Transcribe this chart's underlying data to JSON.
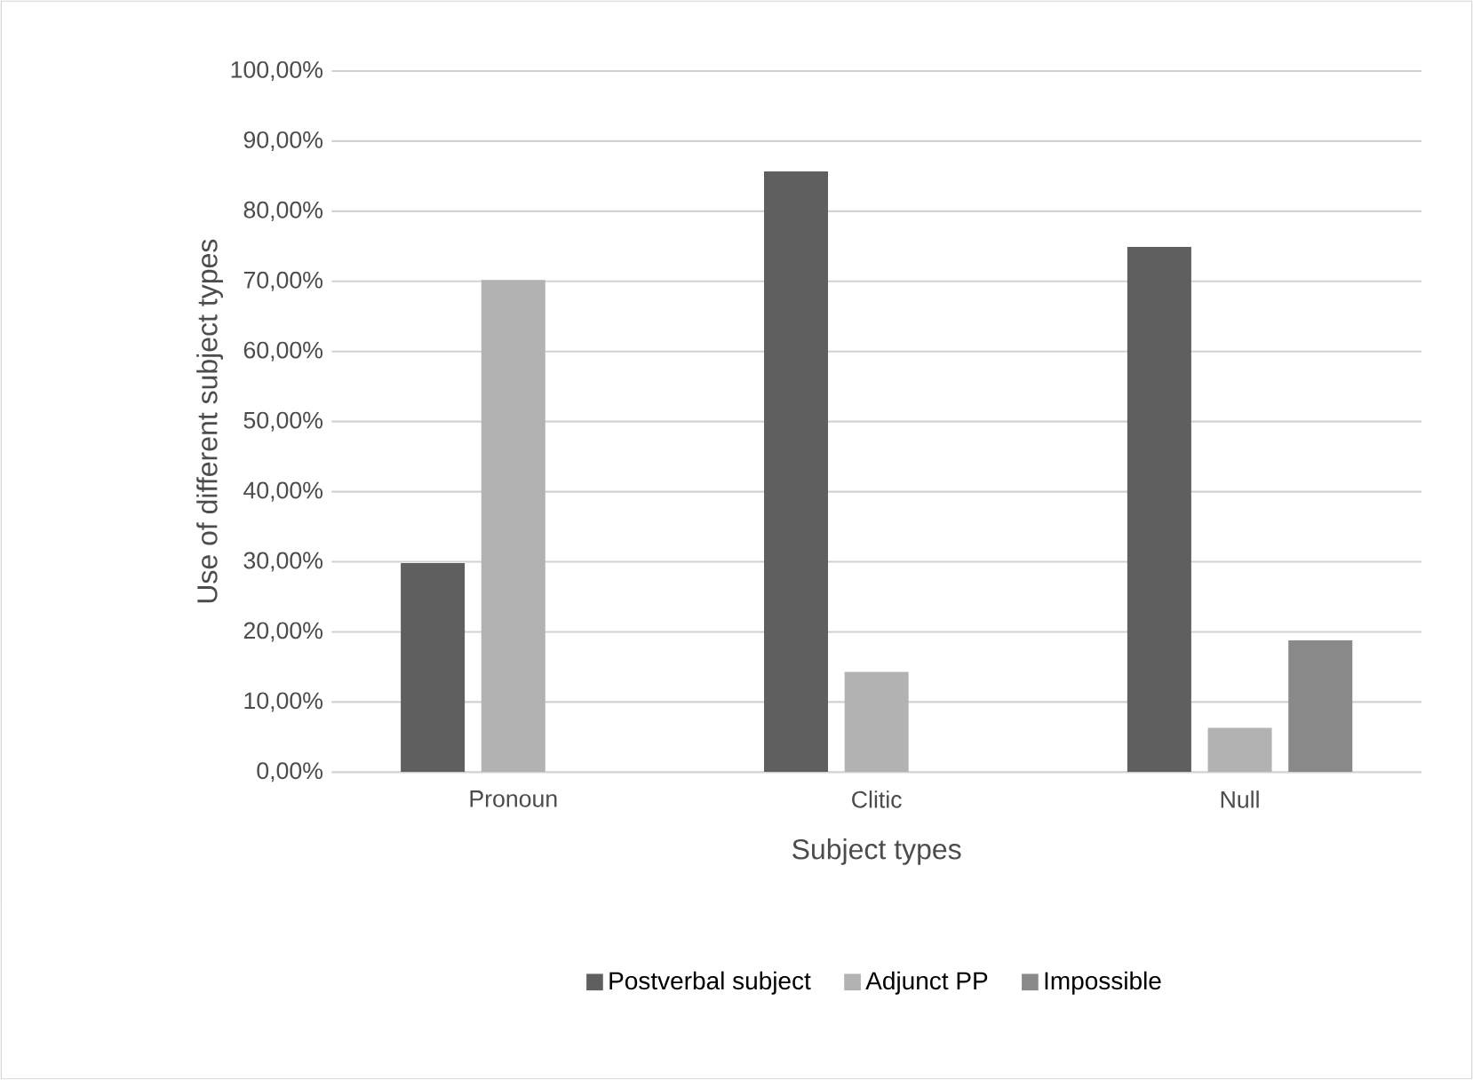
{
  "chart_data": {
    "type": "bar",
    "xlabel": "Subject types",
    "ylabel": "Use of different subject types",
    "categories": [
      "Pronoun",
      "Clitic",
      "Null"
    ],
    "series": [
      {
        "name": "Postverbal subject",
        "color": "#5f5f5f",
        "values": [
          29.8,
          85.7,
          74.9
        ]
      },
      {
        "name": "Adjunct PP",
        "color": "#b2b2b2",
        "values": [
          70.2,
          14.3,
          6.3
        ]
      },
      {
        "name": "Impossible",
        "color": "#898989",
        "values": [
          0,
          0,
          18.8
        ]
      }
    ],
    "ylim": [
      0,
      100
    ],
    "yticks": [
      {
        "value": 0,
        "label": "0,00%"
      },
      {
        "value": 10,
        "label": "10,00%"
      },
      {
        "value": 20,
        "label": "20,00%"
      },
      {
        "value": 30,
        "label": "30,00%"
      },
      {
        "value": 40,
        "label": "40,00%"
      },
      {
        "value": 50,
        "label": "50,00%"
      },
      {
        "value": 60,
        "label": "60,00%"
      },
      {
        "value": 70,
        "label": "70,00%"
      },
      {
        "value": 80,
        "label": "80,00%"
      },
      {
        "value": 90,
        "label": "90,00%"
      },
      {
        "value": 100,
        "label": "100,00%"
      }
    ],
    "grid": "y",
    "legend": "bottom"
  }
}
